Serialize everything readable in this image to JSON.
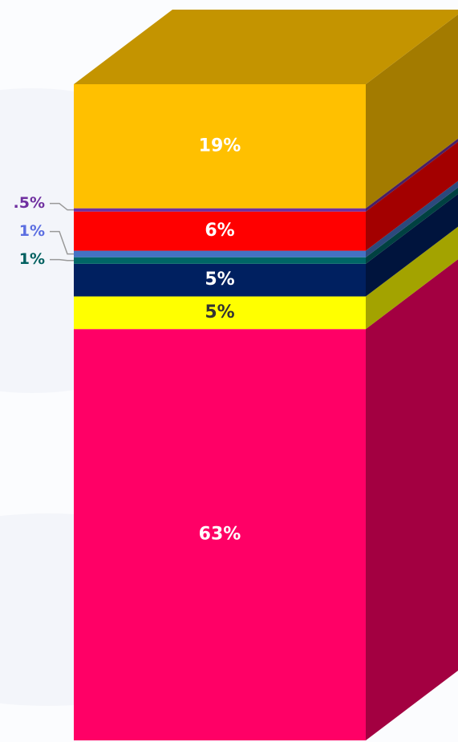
{
  "chart_data": {
    "type": "bar",
    "values": [
      63,
      5,
      5,
      1,
      1,
      6,
      0.5,
      19
    ],
    "value_labels": [
      "63%",
      "5%",
      "5%",
      "1%",
      "1%",
      "6%",
      ".5%",
      "19%"
    ],
    "colors": [
      "#ff0066",
      "#ffff00",
      "#002060",
      "#006666",
      "#4472c4",
      "#ff0000",
      "#7030a0",
      "#ffc000"
    ],
    "label_colors": [
      "#ffffff",
      "#333333",
      "#ffffff",
      "#006060",
      "#5b6ee1",
      "#ffffff",
      "#7030a0",
      "#ffffff"
    ]
  }
}
